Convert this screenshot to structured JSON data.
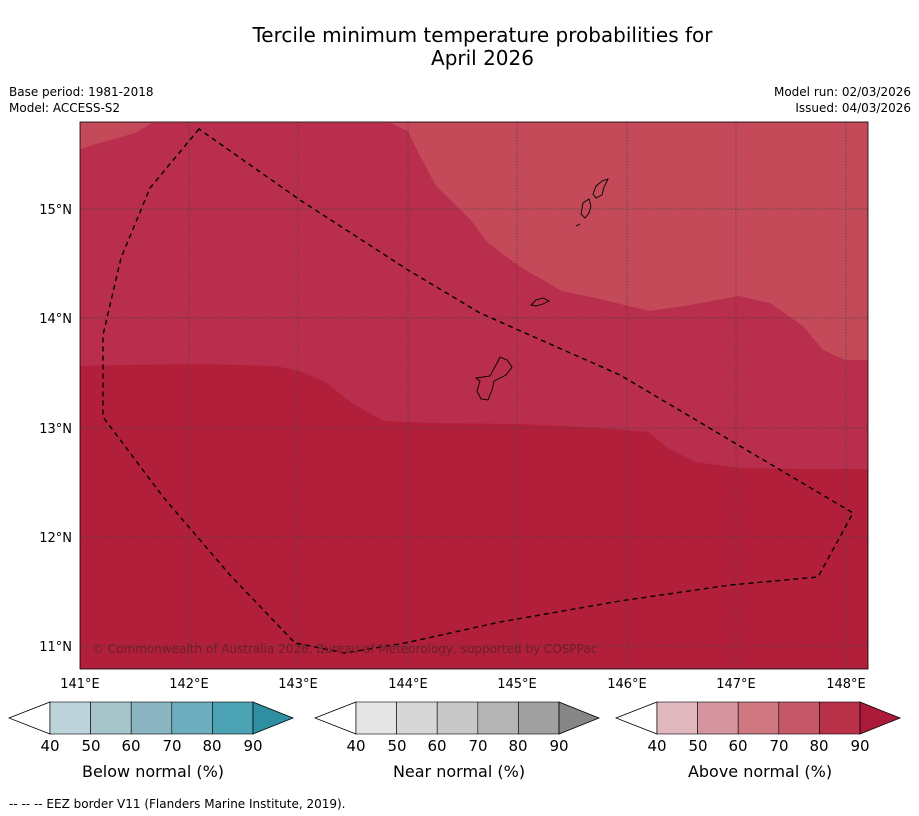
{
  "title": {
    "line1": "Tercile minimum temperature probabilities for",
    "line2": "April 2026"
  },
  "meta": {
    "base_period": "Base period: 1981-2018",
    "model": "Model: ACCESS-S2",
    "model_run": "Model run: 02/03/2026",
    "issued": "Issued: 04/03/2026"
  },
  "map": {
    "lat_labels": [
      "15°N",
      "14°N",
      "13°N",
      "12°N",
      "11°N"
    ],
    "lon_labels": [
      "141°E",
      "142°E",
      "143°E",
      "144°E",
      "145°E",
      "146°E",
      "147°E",
      "148°E"
    ],
    "copyright": "© Commonwealth of Australia 2026, Bureau of Meteorology, supported by COSPPac",
    "colors": {
      "above_70_80": "#c44a5a",
      "above_80_90": "#b82e4c",
      "above_90": "#b21f3a",
      "gridline": "#444444",
      "eez": "#000000"
    }
  },
  "legend": {
    "ticks": [
      "40",
      "50",
      "60",
      "70",
      "80",
      "90"
    ],
    "below": {
      "label": "Below normal (%)",
      "colors": [
        "#ffffff",
        "#bcd3da",
        "#a6c5cb",
        "#8ab5c0",
        "#6caebd",
        "#4ca3b3",
        "#2e8fa3"
      ]
    },
    "near": {
      "label": "Near normal (%)",
      "colors": [
        "#ffffff",
        "#e5e5e5",
        "#d7d7d7",
        "#c8c8c8",
        "#b4b4b4",
        "#a0a0a0",
        "#868686"
      ]
    },
    "above": {
      "label": "Above normal (%)",
      "colors": [
        "#ffffff",
        "#e2b8bf",
        "#d5959e",
        "#cf7882",
        "#c55868",
        "#b93148",
        "#ab1a38"
      ]
    }
  },
  "footer": "--  --  -- EEZ border V11 (Flanders Marine Institute, 2019)."
}
